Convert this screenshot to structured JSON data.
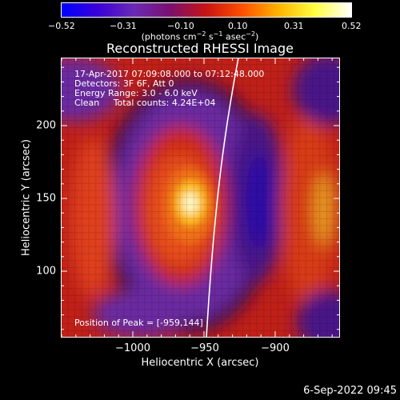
{
  "colorbar": {
    "tick_labels": [
      "−0.52",
      "−0.31",
      "−0.10",
      "0.10",
      "0.31",
      "0.52"
    ],
    "units_text": "(photons cm",
    "units_sup1": "−2",
    "units_mid": " s",
    "units_sup2": "−1",
    "units_end": " asec",
    "units_sup3": "−2",
    "units_close": ")",
    "colors": [
      "#0000ff",
      "#3a00d8",
      "#6a2ab4",
      "#7a1070",
      "#c81414",
      "#ff5000",
      "#ffb400",
      "#ffff40",
      "#ffffff"
    ]
  },
  "title": "Reconstructed RHESSI Image",
  "annotations": {
    "line1": "17-Apr-2017 07:09:08.000 to 07:12:48.000",
    "line2": "Detectors: 3F 6F, Att 0",
    "line3": "Energy Range: 3.0 - 6.0 keV",
    "line4": "Clean     Total counts: 4.24E+04",
    "peak": "Position of Peak = [-959,144]"
  },
  "axes": {
    "xlabel": "Heliocentric X (arcsec)",
    "ylabel": "Heliocentric Y (arcsec)",
    "xticks": [
      "−1000",
      "−950",
      "−900"
    ],
    "yticks": [
      "200",
      "150",
      "100"
    ]
  },
  "footer": {
    "date": "6-Sep-2022 09:45"
  }
}
